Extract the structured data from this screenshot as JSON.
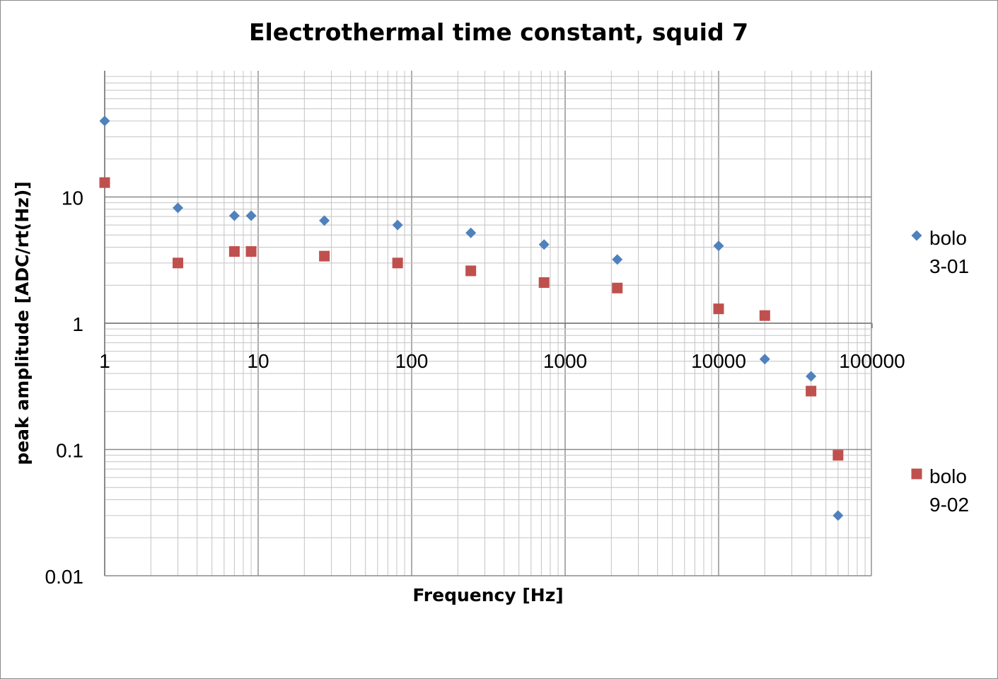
{
  "chart_data": {
    "type": "scatter",
    "title": "Electrothermal time constant, squid 7",
    "xlabel": "Frequency [Hz]",
    "ylabel": "peak amplitude [ADC/rt(Hz)]",
    "xscale": "log",
    "yscale": "log",
    "xlim": [
      1,
      150000
    ],
    "ylim": [
      0.01,
      100
    ],
    "grid": true,
    "legend_position": "right",
    "x_ticks": [
      {
        "value": 1,
        "label": "1"
      },
      {
        "value": 10,
        "label": "10"
      },
      {
        "value": 100,
        "label": "100"
      },
      {
        "value": 1000,
        "label": "1000"
      },
      {
        "value": 10000,
        "label": "10000"
      },
      {
        "value": 100000,
        "label": "100000"
      }
    ],
    "y_ticks": [
      {
        "value": 10,
        "label": "10"
      },
      {
        "value": 1,
        "label": "1"
      },
      {
        "value": 0.1,
        "label": "0.1"
      },
      {
        "value": 0.01,
        "label": "0.01"
      }
    ],
    "series": [
      {
        "name": "bolo 3-01",
        "legend_lines": [
          "bolo",
          "3-01"
        ],
        "marker": "diamond",
        "color": "#4f81bd",
        "points": [
          {
            "x": 1,
            "y": 40
          },
          {
            "x": 3,
            "y": 8.2
          },
          {
            "x": 7,
            "y": 7.1
          },
          {
            "x": 9,
            "y": 7.1
          },
          {
            "x": 27,
            "y": 6.5
          },
          {
            "x": 81,
            "y": 6.0
          },
          {
            "x": 243,
            "y": 5.2
          },
          {
            "x": 729,
            "y": 4.2
          },
          {
            "x": 2187,
            "y": 3.2
          },
          {
            "x": 10000,
            "y": 4.1
          },
          {
            "x": 20000,
            "y": 0.52
          },
          {
            "x": 40000,
            "y": 0.38
          },
          {
            "x": 60000,
            "y": 0.03
          }
        ]
      },
      {
        "name": "bolo 9-02",
        "legend_lines": [
          "bolo",
          "9-02"
        ],
        "marker": "square",
        "color": "#c0504d",
        "points": [
          {
            "x": 1,
            "y": 13
          },
          {
            "x": 3,
            "y": 3.0
          },
          {
            "x": 7,
            "y": 3.7
          },
          {
            "x": 9,
            "y": 3.7
          },
          {
            "x": 27,
            "y": 3.4
          },
          {
            "x": 81,
            "y": 3.0
          },
          {
            "x": 243,
            "y": 2.6
          },
          {
            "x": 729,
            "y": 2.1
          },
          {
            "x": 2187,
            "y": 1.9
          },
          {
            "x": 10000,
            "y": 1.3
          },
          {
            "x": 20000,
            "y": 1.15
          },
          {
            "x": 40000,
            "y": 0.29
          },
          {
            "x": 60000,
            "y": 0.09
          }
        ]
      }
    ]
  }
}
